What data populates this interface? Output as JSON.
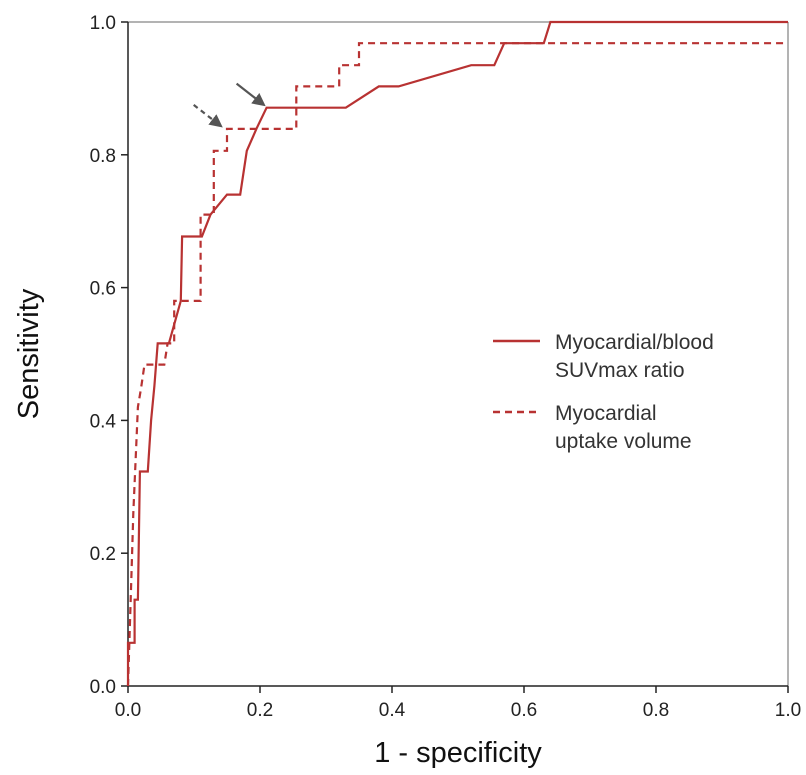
{
  "chart_data": {
    "type": "line",
    "xlabel": "1 - specificity",
    "ylabel": "Sensitivity",
    "xlim": [
      0,
      1
    ],
    "ylim": [
      0,
      1
    ],
    "x_ticks": [
      "0.0",
      "0.2",
      "0.4",
      "0.6",
      "0.8",
      "1.0"
    ],
    "y_ticks": [
      "0.0",
      "0.2",
      "0.4",
      "0.6",
      "0.8",
      "1.0"
    ],
    "grid": false,
    "legend_position": "right",
    "series": [
      {
        "name": "Myocardial/blood SUVmax ratio",
        "legend_lines": [
          "Myocardial/blood",
          "SUVmax ratio"
        ],
        "style": "solid",
        "color": "#b83232",
        "points": [
          [
            0.0,
            0.0
          ],
          [
            0.0,
            0.065
          ],
          [
            0.01,
            0.065
          ],
          [
            0.01,
            0.13
          ],
          [
            0.015,
            0.13
          ],
          [
            0.018,
            0.323
          ],
          [
            0.03,
            0.323
          ],
          [
            0.035,
            0.4
          ],
          [
            0.04,
            0.452
          ],
          [
            0.045,
            0.516
          ],
          [
            0.062,
            0.516
          ],
          [
            0.08,
            0.58
          ],
          [
            0.082,
            0.677
          ],
          [
            0.112,
            0.677
          ],
          [
            0.125,
            0.71
          ],
          [
            0.15,
            0.74
          ],
          [
            0.17,
            0.74
          ],
          [
            0.18,
            0.806
          ],
          [
            0.195,
            0.84
          ],
          [
            0.21,
            0.871
          ],
          [
            0.33,
            0.871
          ],
          [
            0.38,
            0.903
          ],
          [
            0.41,
            0.903
          ],
          [
            0.52,
            0.935
          ],
          [
            0.555,
            0.935
          ],
          [
            0.57,
            0.968
          ],
          [
            0.63,
            0.968
          ],
          [
            0.64,
            1.0
          ],
          [
            1.0,
            1.0
          ]
        ]
      },
      {
        "name": "Myocardial uptake volume",
        "legend_lines": [
          "Myocardial",
          "uptake volume"
        ],
        "style": "dashed",
        "color": "#b83232",
        "points": [
          [
            0.0,
            0.0
          ],
          [
            0.005,
            0.16
          ],
          [
            0.008,
            0.26
          ],
          [
            0.015,
            0.42
          ],
          [
            0.02,
            0.45
          ],
          [
            0.025,
            0.484
          ],
          [
            0.055,
            0.484
          ],
          [
            0.06,
            0.516
          ],
          [
            0.07,
            0.516
          ],
          [
            0.07,
            0.58
          ],
          [
            0.11,
            0.58
          ],
          [
            0.11,
            0.71
          ],
          [
            0.13,
            0.71
          ],
          [
            0.13,
            0.806
          ],
          [
            0.15,
            0.806
          ],
          [
            0.15,
            0.839
          ],
          [
            0.255,
            0.839
          ],
          [
            0.255,
            0.903
          ],
          [
            0.32,
            0.903
          ],
          [
            0.32,
            0.935
          ],
          [
            0.35,
            0.935
          ],
          [
            0.35,
            0.968
          ],
          [
            1.0,
            0.968
          ]
        ]
      }
    ],
    "annotations": [
      {
        "type": "solid-arrow",
        "target_series": "Myocardial/blood SUVmax ratio",
        "points_to": [
          0.21,
          0.871
        ]
      },
      {
        "type": "dashed-arrow",
        "target_series": "Myocardial uptake volume",
        "points_to": [
          0.145,
          0.839
        ]
      }
    ]
  }
}
